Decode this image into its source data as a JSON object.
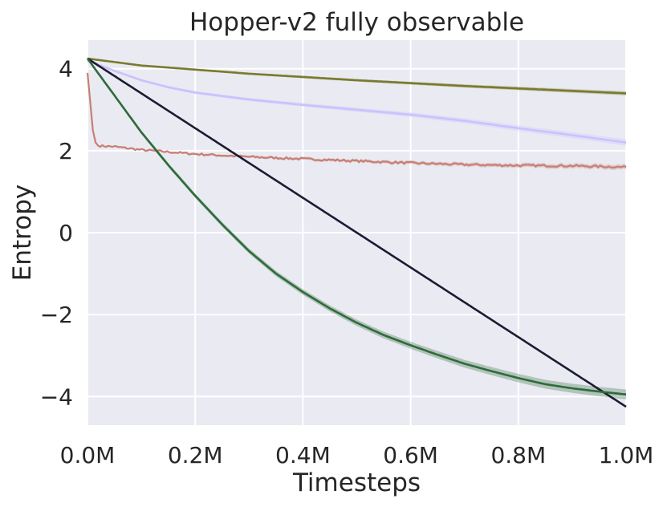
{
  "chart_data": {
    "type": "line",
    "title": "Hopper-v2 fully observable",
    "xlabel": "Timesteps",
    "ylabel": "Entropy",
    "xlim": [
      0,
      1.0
    ],
    "ylim": [
      -4.7,
      4.7
    ],
    "x_ticks": [
      0.0,
      0.2,
      0.4,
      0.6,
      0.8,
      1.0
    ],
    "x_tick_labels": [
      "0.0M",
      "0.2M",
      "0.4M",
      "0.6M",
      "0.8M",
      "1.0M"
    ],
    "y_ticks": [
      4,
      2,
      0,
      -2,
      -4
    ],
    "y_tick_labels": [
      "4",
      "2",
      "0",
      "−2",
      "−4"
    ],
    "grid": true,
    "background": "#eaeaf2",
    "series": [
      {
        "color": "#7a7a2e",
        "band": 0.05,
        "x": [
          0.0,
          0.1,
          0.2,
          0.3,
          0.4,
          0.5,
          0.6,
          0.7,
          0.8,
          0.9,
          1.0
        ],
        "y": [
          4.25,
          4.08,
          3.98,
          3.88,
          3.8,
          3.72,
          3.65,
          3.58,
          3.52,
          3.46,
          3.4
        ]
      },
      {
        "color": "#c8c2ff",
        "band": 0.08,
        "x": [
          0.0,
          0.05,
          0.1,
          0.15,
          0.2,
          0.3,
          0.4,
          0.5,
          0.6,
          0.7,
          0.8,
          0.9,
          1.0
        ],
        "y": [
          4.2,
          3.95,
          3.72,
          3.55,
          3.42,
          3.25,
          3.12,
          3.0,
          2.88,
          2.73,
          2.55,
          2.38,
          2.2
        ]
      },
      {
        "color": "#c77f74",
        "band": 0.06,
        "noisy": true,
        "x": [
          0.0,
          0.005,
          0.01,
          0.015,
          0.02,
          0.05,
          0.1,
          0.2,
          0.3,
          0.4,
          0.5,
          0.6,
          0.7,
          0.8,
          0.9,
          1.0
        ],
        "y": [
          3.9,
          3.2,
          2.5,
          2.2,
          2.12,
          2.1,
          2.02,
          1.92,
          1.85,
          1.8,
          1.75,
          1.7,
          1.66,
          1.64,
          1.63,
          1.6
        ]
      },
      {
        "color": "#1b1b33",
        "band": 0.0,
        "x": [
          0.0,
          1.0
        ],
        "y": [
          4.25,
          -4.25
        ]
      },
      {
        "color": "#2e6b3a",
        "band": 0.12,
        "x": [
          0.0,
          0.05,
          0.1,
          0.15,
          0.2,
          0.25,
          0.3,
          0.35,
          0.4,
          0.45,
          0.5,
          0.55,
          0.6,
          0.65,
          0.7,
          0.75,
          0.8,
          0.85,
          0.9,
          0.95,
          1.0
        ],
        "y": [
          4.25,
          3.35,
          2.45,
          1.65,
          0.9,
          0.2,
          -0.45,
          -1.0,
          -1.45,
          -1.85,
          -2.2,
          -2.5,
          -2.75,
          -2.98,
          -3.2,
          -3.38,
          -3.55,
          -3.7,
          -3.8,
          -3.88,
          -3.95
        ]
      }
    ]
  }
}
